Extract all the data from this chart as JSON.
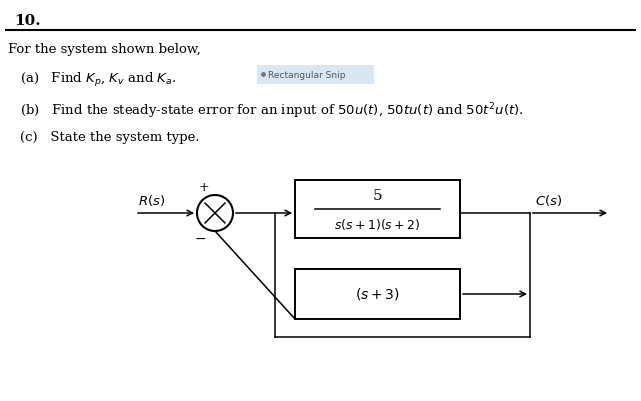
{
  "title_number": "10.",
  "line1": "For the system shown below,",
  "line2a": "(a)   Find $K_p$, $K_v$ and $K_a$.",
  "line2b": "Rectangular Snip",
  "line3": "(b)   Find the steady-state error for an input of $50u(t)$, $50tu(t)$ and $50t^2u(t)$.",
  "line4": "(c)   State the system type.",
  "forward_tf_num": "5",
  "forward_tf_den": "$s(s+1)(s+2)$",
  "feedback_tf": "$(s+3)$",
  "R_label": "$R(s)$",
  "C_label": "$C(s)$",
  "plus_label": "+",
  "minus_label": "−",
  "background": "#ffffff",
  "text_color": "#000000",
  "highlight_color": "#cde0f0",
  "fig_width": 6.41,
  "fig_height": 4.01,
  "dpi": 100
}
